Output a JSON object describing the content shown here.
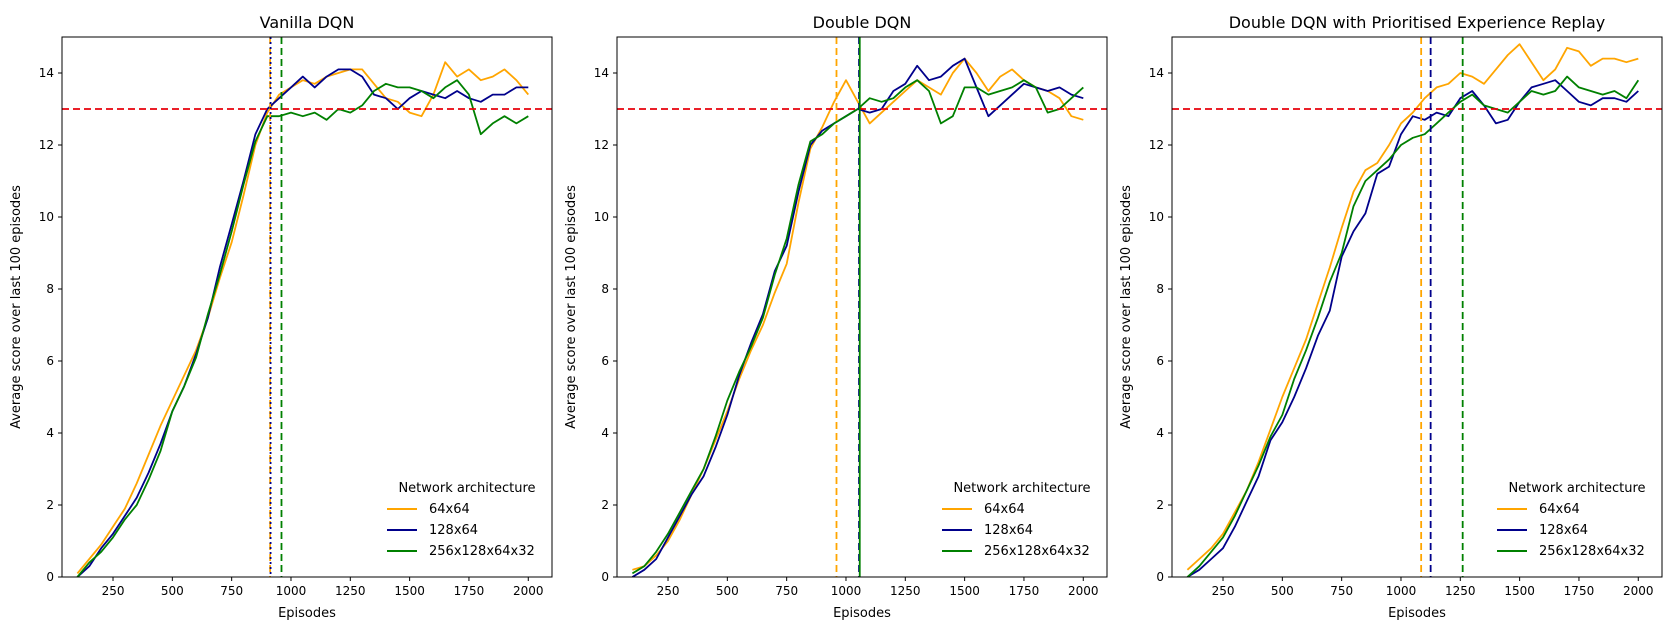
{
  "chart_data": [
    {
      "type": "line",
      "title": "Vanilla DQN",
      "xlabel": "Episodes",
      "ylabel": "Average score over last 100 episodes",
      "xlim": [
        35,
        2100
      ],
      "ylim": [
        0,
        15
      ],
      "xticks": [
        250,
        500,
        750,
        1000,
        1250,
        1500,
        1750,
        2000
      ],
      "yticks": [
        0,
        2,
        4,
        6,
        8,
        10,
        12,
        14
      ],
      "grid": false,
      "legend": {
        "title": "Network architecture",
        "placement": "bottom-right"
      },
      "hlines": [
        {
          "y": 13,
          "color": "#e8000b",
          "style": "dashed"
        }
      ],
      "vlines": [
        {
          "x": 912,
          "color": "#ffa500",
          "style": "dashed"
        },
        {
          "x": 914,
          "color": "#00008b",
          "style": "dotted"
        },
        {
          "x": 960,
          "color": "#008000",
          "style": "dashed"
        }
      ],
      "series": [
        {
          "name": "64x64",
          "color": "#ffa500",
          "x": [
            100,
            150,
            200,
            250,
            300,
            350,
            400,
            450,
            500,
            550,
            600,
            650,
            700,
            750,
            800,
            850,
            900,
            950,
            1000,
            1050,
            1100,
            1150,
            1200,
            1250,
            1300,
            1350,
            1400,
            1450,
            1500,
            1550,
            1600,
            1650,
            1700,
            1750,
            1800,
            1850,
            1900,
            1950,
            2000
          ],
          "y": [
            0.1,
            0.5,
            0.9,
            1.4,
            1.9,
            2.6,
            3.4,
            4.2,
            4.9,
            5.6,
            6.3,
            7.2,
            8.3,
            9.3,
            10.6,
            12.0,
            12.9,
            13.4,
            13.6,
            13.8,
            13.7,
            13.9,
            14.0,
            14.1,
            14.1,
            13.7,
            13.3,
            13.2,
            12.9,
            12.8,
            13.4,
            14.3,
            13.9,
            14.1,
            13.8,
            13.9,
            14.1,
            13.8,
            13.4
          ]
        },
        {
          "name": "128x64",
          "color": "#00008b",
          "x": [
            100,
            150,
            200,
            250,
            300,
            350,
            400,
            450,
            500,
            550,
            600,
            650,
            700,
            750,
            800,
            850,
            900,
            950,
            1000,
            1050,
            1100,
            1150,
            1200,
            1250,
            1300,
            1350,
            1400,
            1450,
            1500,
            1550,
            1600,
            1650,
            1700,
            1750,
            1800,
            1850,
            1900,
            1950,
            2000
          ],
          "y": [
            0.0,
            0.3,
            0.8,
            1.2,
            1.7,
            2.2,
            2.9,
            3.7,
            4.6,
            5.3,
            6.2,
            7.2,
            8.6,
            9.8,
            11.0,
            12.3,
            13.0,
            13.3,
            13.6,
            13.9,
            13.6,
            13.9,
            14.1,
            14.1,
            13.9,
            13.4,
            13.3,
            13.0,
            13.3,
            13.5,
            13.4,
            13.3,
            13.5,
            13.3,
            13.2,
            13.4,
            13.4,
            13.6,
            13.6
          ]
        },
        {
          "name": "256x128x64x32",
          "color": "#008000",
          "x": [
            100,
            150,
            200,
            250,
            300,
            350,
            400,
            450,
            500,
            550,
            600,
            650,
            700,
            750,
            800,
            850,
            900,
            950,
            1000,
            1050,
            1100,
            1150,
            1200,
            1250,
            1300,
            1350,
            1400,
            1450,
            1500,
            1550,
            1600,
            1650,
            1700,
            1750,
            1800,
            1850,
            1900,
            1950,
            2000
          ],
          "y": [
            0.0,
            0.4,
            0.7,
            1.1,
            1.6,
            2.0,
            2.7,
            3.5,
            4.6,
            5.3,
            6.1,
            7.3,
            8.4,
            9.6,
            10.9,
            12.1,
            12.8,
            12.8,
            12.9,
            12.8,
            12.9,
            12.7,
            13.0,
            12.9,
            13.1,
            13.5,
            13.7,
            13.6,
            13.6,
            13.5,
            13.3,
            13.6,
            13.8,
            13.4,
            12.3,
            12.6,
            12.8,
            12.6,
            12.8
          ]
        }
      ]
    },
    {
      "type": "line",
      "title": "Double DQN",
      "xlabel": "Episodes",
      "ylabel": "Average score over last 100 episodes",
      "xlim": [
        35,
        2100
      ],
      "ylim": [
        0,
        15
      ],
      "xticks": [
        250,
        500,
        750,
        1000,
        1250,
        1500,
        1750,
        2000
      ],
      "yticks": [
        0,
        2,
        4,
        6,
        8,
        10,
        12,
        14
      ],
      "grid": false,
      "legend": {
        "title": "Network architecture",
        "placement": "bottom-right"
      },
      "hlines": [
        {
          "y": 13,
          "color": "#e8000b",
          "style": "dashed"
        }
      ],
      "vlines": [
        {
          "x": 960,
          "color": "#ffa500",
          "style": "dashed"
        },
        {
          "x": 1055,
          "color": "#00008b",
          "style": "dashed"
        },
        {
          "x": 1058,
          "color": "#008000",
          "style": "solid"
        }
      ],
      "series": [
        {
          "name": "64x64",
          "color": "#ffa500",
          "x": [
            100,
            150,
            200,
            250,
            300,
            350,
            400,
            450,
            500,
            550,
            600,
            650,
            700,
            750,
            800,
            850,
            900,
            950,
            1000,
            1050,
            1100,
            1150,
            1200,
            1250,
            1300,
            1350,
            1400,
            1450,
            1500,
            1550,
            1600,
            1650,
            1700,
            1750,
            1800,
            1850,
            1900,
            1950,
            2000
          ],
          "y": [
            0.2,
            0.3,
            0.6,
            1.0,
            1.6,
            2.3,
            3.0,
            3.8,
            4.6,
            5.5,
            6.3,
            7.0,
            7.9,
            8.7,
            10.4,
            11.9,
            12.5,
            13.2,
            13.8,
            13.2,
            12.6,
            12.9,
            13.2,
            13.5,
            13.8,
            13.6,
            13.4,
            14.0,
            14.4,
            14.0,
            13.5,
            13.9,
            14.1,
            13.8,
            13.6,
            13.5,
            13.3,
            12.8,
            12.7
          ]
        },
        {
          "name": "128x64",
          "color": "#00008b",
          "x": [
            100,
            150,
            200,
            250,
            300,
            350,
            400,
            450,
            500,
            550,
            600,
            650,
            700,
            750,
            800,
            850,
            900,
            950,
            1000,
            1050,
            1100,
            1150,
            1200,
            1250,
            1300,
            1350,
            1400,
            1450,
            1500,
            1550,
            1600,
            1650,
            1700,
            1750,
            1800,
            1850,
            1900,
            1950,
            2000
          ],
          "y": [
            0.0,
            0.2,
            0.5,
            1.1,
            1.7,
            2.3,
            2.8,
            3.6,
            4.5,
            5.6,
            6.5,
            7.3,
            8.5,
            9.2,
            10.7,
            12.0,
            12.4,
            12.6,
            12.8,
            13.0,
            12.9,
            13.0,
            13.5,
            13.7,
            14.2,
            13.8,
            13.9,
            14.2,
            14.4,
            13.6,
            12.8,
            13.1,
            13.4,
            13.7,
            13.6,
            13.5,
            13.6,
            13.4,
            13.3
          ]
        },
        {
          "name": "256x128x64x32",
          "color": "#008000",
          "x": [
            100,
            150,
            200,
            250,
            300,
            350,
            400,
            450,
            500,
            550,
            600,
            650,
            700,
            750,
            800,
            850,
            900,
            950,
            1000,
            1050,
            1100,
            1150,
            1200,
            1250,
            1300,
            1350,
            1400,
            1450,
            1500,
            1550,
            1600,
            1650,
            1700,
            1750,
            1800,
            1850,
            1900,
            1950,
            2000
          ],
          "y": [
            0.1,
            0.3,
            0.7,
            1.2,
            1.8,
            2.4,
            3.0,
            3.9,
            4.9,
            5.7,
            6.4,
            7.2,
            8.4,
            9.4,
            10.9,
            12.1,
            12.3,
            12.6,
            12.8,
            13.0,
            13.3,
            13.2,
            13.3,
            13.6,
            13.8,
            13.5,
            12.6,
            12.8,
            13.6,
            13.6,
            13.4,
            13.5,
            13.6,
            13.8,
            13.6,
            12.9,
            13.0,
            13.3,
            13.6
          ]
        }
      ]
    },
    {
      "type": "line",
      "title": "Double DQN with Prioritised Experience Replay",
      "xlabel": "Episodes",
      "ylabel": "Average score over last 100 episodes",
      "xlim": [
        35,
        2100
      ],
      "ylim": [
        0,
        15
      ],
      "xticks": [
        250,
        500,
        750,
        1000,
        1250,
        1500,
        1750,
        2000
      ],
      "yticks": [
        0,
        2,
        4,
        6,
        8,
        10,
        12,
        14
      ],
      "grid": false,
      "legend": {
        "title": "Network architecture",
        "placement": "bottom-right"
      },
      "hlines": [
        {
          "y": 13,
          "color": "#e8000b",
          "style": "dashed"
        }
      ],
      "vlines": [
        {
          "x": 1085,
          "color": "#ffa500",
          "style": "dashed"
        },
        {
          "x": 1125,
          "color": "#00008b",
          "style": "dashed"
        },
        {
          "x": 1260,
          "color": "#008000",
          "style": "dashed"
        }
      ],
      "series": [
        {
          "name": "64x64",
          "color": "#ffa500",
          "x": [
            100,
            150,
            200,
            250,
            300,
            350,
            400,
            450,
            500,
            550,
            600,
            650,
            700,
            750,
            800,
            850,
            900,
            950,
            1000,
            1050,
            1100,
            1150,
            1200,
            1250,
            1300,
            1350,
            1400,
            1450,
            1500,
            1550,
            1600,
            1650,
            1700,
            1750,
            1800,
            1850,
            1900,
            1950,
            2000
          ],
          "y": [
            0.2,
            0.5,
            0.8,
            1.2,
            1.8,
            2.4,
            3.2,
            4.1,
            5.0,
            5.8,
            6.6,
            7.6,
            8.6,
            9.7,
            10.7,
            11.3,
            11.5,
            12.0,
            12.6,
            12.9,
            13.3,
            13.6,
            13.7,
            14.0,
            13.9,
            13.7,
            14.1,
            14.5,
            14.8,
            14.3,
            13.8,
            14.1,
            14.7,
            14.6,
            14.2,
            14.4,
            14.4,
            14.3,
            14.4
          ]
        },
        {
          "name": "128x64",
          "color": "#00008b",
          "x": [
            100,
            150,
            200,
            250,
            300,
            350,
            400,
            450,
            500,
            550,
            600,
            650,
            700,
            750,
            800,
            850,
            900,
            950,
            1000,
            1050,
            1100,
            1150,
            1200,
            1250,
            1300,
            1350,
            1400,
            1450,
            1500,
            1550,
            1600,
            1650,
            1700,
            1750,
            1800,
            1850,
            1900,
            1950,
            2000
          ],
          "y": [
            0.0,
            0.2,
            0.5,
            0.8,
            1.4,
            2.1,
            2.8,
            3.8,
            4.3,
            5.0,
            5.8,
            6.7,
            7.4,
            8.9,
            9.6,
            10.1,
            11.2,
            11.4,
            12.3,
            12.8,
            12.7,
            12.9,
            12.8,
            13.3,
            13.5,
            13.1,
            12.6,
            12.7,
            13.2,
            13.6,
            13.7,
            13.8,
            13.5,
            13.2,
            13.1,
            13.3,
            13.3,
            13.2,
            13.5
          ]
        },
        {
          "name": "256x128x64x32",
          "color": "#008000",
          "x": [
            100,
            150,
            200,
            250,
            300,
            350,
            400,
            450,
            500,
            550,
            600,
            650,
            700,
            750,
            800,
            850,
            900,
            950,
            1000,
            1050,
            1100,
            1150,
            1200,
            1250,
            1300,
            1350,
            1400,
            1450,
            1500,
            1550,
            1600,
            1650,
            1700,
            1750,
            1800,
            1850,
            1900,
            1950,
            2000
          ],
          "y": [
            0.0,
            0.3,
            0.7,
            1.1,
            1.7,
            2.4,
            3.1,
            3.9,
            4.5,
            5.5,
            6.3,
            7.2,
            8.2,
            9.0,
            10.3,
            11.0,
            11.3,
            11.6,
            12.0,
            12.2,
            12.3,
            12.6,
            12.9,
            13.2,
            13.4,
            13.1,
            13.0,
            12.9,
            13.2,
            13.5,
            13.4,
            13.5,
            13.9,
            13.6,
            13.5,
            13.4,
            13.5,
            13.3,
            13.8
          ]
        }
      ]
    }
  ]
}
